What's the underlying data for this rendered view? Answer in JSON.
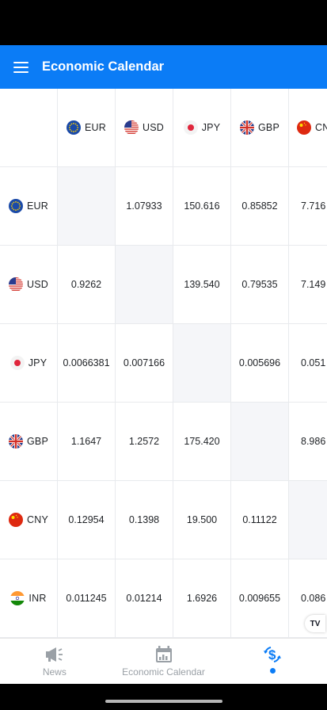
{
  "app_bar": {
    "title": "Economic Calendar"
  },
  "currencies": [
    {
      "code": "EUR",
      "flag": "eu-flag"
    },
    {
      "code": "USD",
      "flag": "us-flag"
    },
    {
      "code": "JPY",
      "flag": "jp-flag"
    },
    {
      "code": "GBP",
      "flag": "gb-flag"
    },
    {
      "code": "CNY",
      "flag": "cn-flag"
    },
    {
      "code": "INR",
      "flag": "in-flag"
    }
  ],
  "column_header_visible": [
    "EUR",
    "USD",
    "JPY",
    "GBP",
    "CN"
  ],
  "matrix": [
    [
      "",
      "1.07933",
      "150.616",
      "0.85852",
      "7.716"
    ],
    [
      "0.9262",
      "",
      "139.540",
      "0.79535",
      "7.149"
    ],
    [
      "0.0066381",
      "0.007166",
      "",
      "0.005696",
      "0.051"
    ],
    [
      "1.1647",
      "1.2572",
      "175.420",
      "",
      "8.986"
    ],
    [
      "0.12954",
      "0.1398",
      "19.500",
      "0.11122",
      ""
    ],
    [
      "0.011245",
      "0.01214",
      "1.6926",
      "0.009655",
      "0.086"
    ]
  ],
  "badge": {
    "text": "TV"
  },
  "bottom_nav": {
    "items": [
      {
        "label": "News",
        "icon": "megaphone-icon"
      },
      {
        "label": "Economic Calendar",
        "icon": "calendar-icon"
      },
      {
        "label": "",
        "icon": "currency-exchange-icon"
      }
    ]
  },
  "colors": {
    "accent": "#0b7cf6",
    "diagonal": "#f5f6f9",
    "grid_line": "#e8eaed"
  }
}
